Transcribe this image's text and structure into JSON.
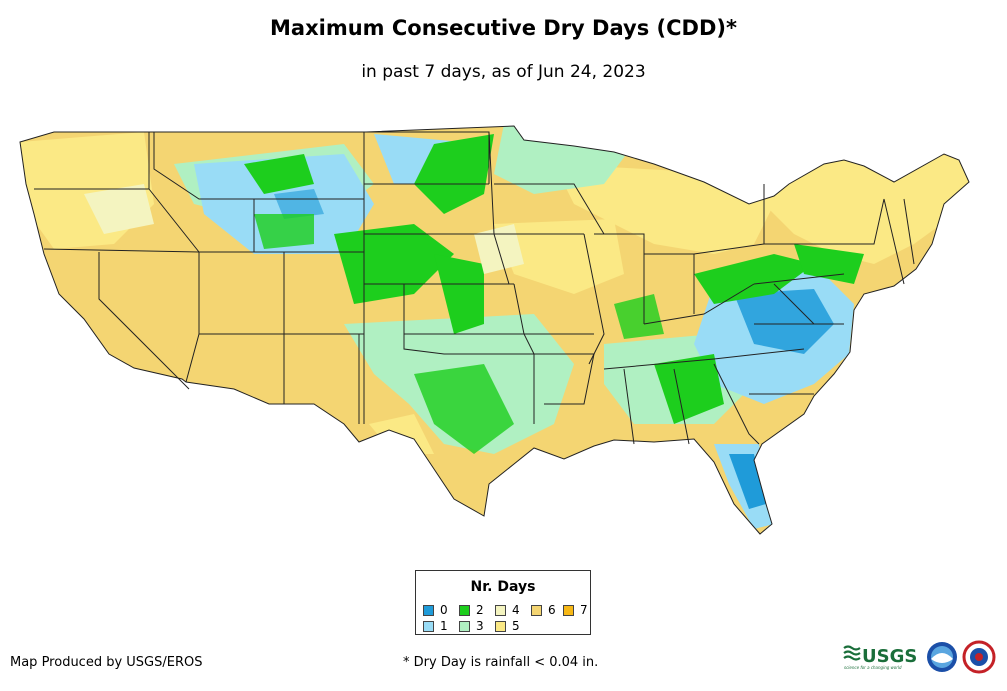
{
  "header": {
    "title": "Maximum Consecutive Dry Days (CDD)*",
    "subtitle": "in past 7 days, as of Jun 24, 2023"
  },
  "legend": {
    "title": "Nr. Days",
    "items": [
      {
        "label": "0",
        "color": "#1f9bd9"
      },
      {
        "label": "1",
        "color": "#99dcf6"
      },
      {
        "label": "2",
        "color": "#1dce1d"
      },
      {
        "label": "3",
        "color": "#b0f0c2"
      },
      {
        "label": "4",
        "color": "#f4f4c0"
      },
      {
        "label": "5",
        "color": "#fbe985"
      },
      {
        "label": "6",
        "color": "#f4d572"
      },
      {
        "label": "7",
        "color": "#f7b816"
      }
    ]
  },
  "footer": {
    "credit": "Map Produced by USGS/EROS",
    "note": "* Dry Day is rainfall < 0.04 in."
  },
  "logos": {
    "usgs_text": "USGS",
    "usgs_tagline": "science for a changing world"
  }
}
